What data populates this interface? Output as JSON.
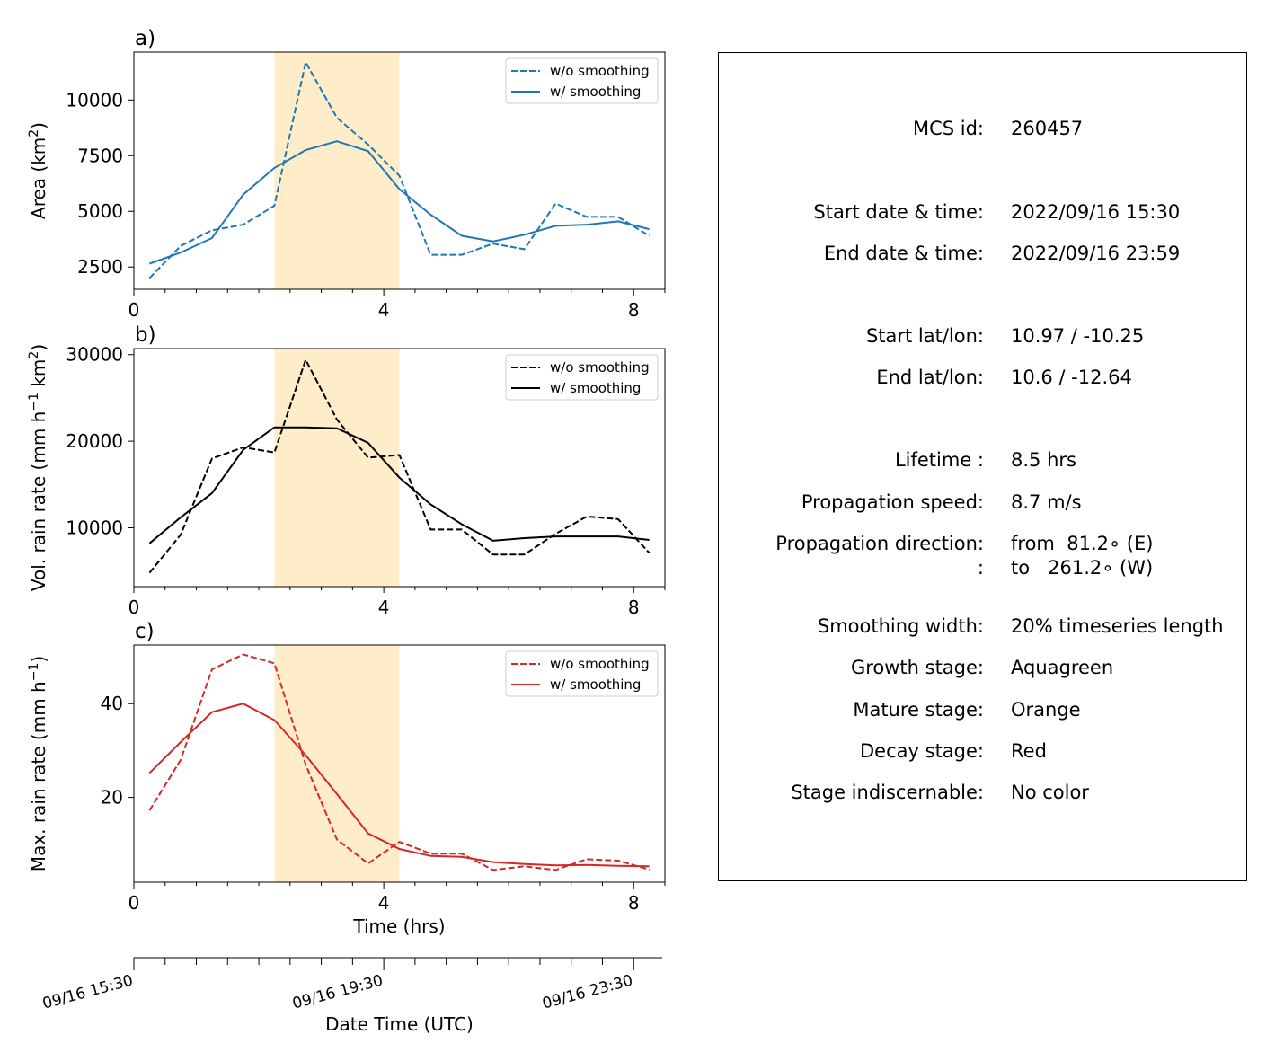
{
  "chart_data": [
    {
      "type": "line",
      "panel_label": "a)",
      "ylabel": "Area  (km²)",
      "x": [
        0.25,
        0.75,
        1.25,
        1.75,
        2.25,
        2.75,
        3.25,
        3.75,
        4.25,
        4.75,
        5.25,
        5.75,
        6.25,
        6.75,
        7.25,
        7.75,
        8.25
      ],
      "series": [
        {
          "name": "w/o smoothing",
          "style": "dashed",
          "color": "#1f77b4",
          "values": [
            2000,
            3450,
            4150,
            4400,
            5250,
            11700,
            9200,
            8000,
            6600,
            3050,
            3050,
            3550,
            3300,
            5350,
            4750,
            4750,
            3900
          ]
        },
        {
          "name": "w/ smoothing",
          "style": "solid",
          "color": "#1f77b4",
          "values": [
            2650,
            3150,
            3800,
            5750,
            6950,
            7750,
            8150,
            7700,
            6000,
            4850,
            3900,
            3650,
            3950,
            4350,
            4400,
            4550,
            4200
          ]
        }
      ],
      "xlim": [
        0,
        8.5
      ],
      "ylim": [
        1500,
        12150
      ],
      "xticks": [
        "0",
        "4",
        "8"
      ],
      "yticks": [
        {
          "v": 2500,
          "label": "2500"
        },
        {
          "v": 5000,
          "label": "5000"
        },
        {
          "v": 7500,
          "label": "7500"
        },
        {
          "v": 10000,
          "label": "10000"
        }
      ],
      "shaded_span": [
        2.25,
        4.25
      ],
      "shade_color": "#ffecc9",
      "legend": "top-right"
    },
    {
      "type": "line",
      "panel_label": "b)",
      "ylabel": "Vol. rain rate (mm h⁻¹ km²)",
      "x": [
        0.25,
        0.75,
        1.25,
        1.75,
        2.25,
        2.75,
        3.25,
        3.75,
        4.25,
        4.75,
        5.25,
        5.75,
        6.25,
        6.75,
        7.25,
        7.75,
        8.25
      ],
      "series": [
        {
          "name": "w/o smoothing",
          "style": "dashed",
          "color": "#000000",
          "values": [
            4800,
            9200,
            18000,
            19300,
            18700,
            29400,
            22500,
            18100,
            18400,
            9800,
            9800,
            6900,
            6900,
            9300,
            11300,
            11000,
            7100
          ]
        },
        {
          "name": "w/ smoothing",
          "style": "solid",
          "color": "#000000",
          "values": [
            8200,
            11200,
            14000,
            19000,
            21600,
            21600,
            21500,
            19800,
            15800,
            12700,
            10400,
            8500,
            8800,
            9000,
            9000,
            9000,
            8600
          ]
        }
      ],
      "xlim": [
        0,
        8.5
      ],
      "ylim": [
        3200,
        30700
      ],
      "xticks": [
        "0",
        "4",
        "8"
      ],
      "yticks": [
        {
          "v": 10000,
          "label": "10000"
        },
        {
          "v": 20000,
          "label": "20000"
        },
        {
          "v": 30000,
          "label": "30000"
        }
      ],
      "shaded_span": [
        2.25,
        4.25
      ],
      "shade_color": "#ffecc9",
      "legend": "top-right"
    },
    {
      "type": "line",
      "panel_label": "c)",
      "ylabel": "Max. rain rate  (mm h⁻¹)",
      "xlabel": "Time (hrs)",
      "x": [
        0.25,
        0.75,
        1.25,
        1.75,
        2.25,
        2.75,
        3.25,
        3.75,
        4.25,
        4.75,
        5.25,
        5.75,
        6.25,
        6.75,
        7.25,
        7.75,
        8.25
      ],
      "series": [
        {
          "name": "w/o smoothing",
          "style": "dashed",
          "color": "#d62728",
          "values": [
            17.2,
            28.0,
            47.3,
            50.5,
            48.6,
            27.0,
            11.0,
            5.9,
            10.5,
            8.0,
            8.0,
            4.5,
            5.3,
            4.5,
            6.8,
            6.5,
            4.6
          ]
        },
        {
          "name": "w/ smoothing",
          "style": "solid",
          "color": "#d62728",
          "values": [
            25.2,
            31.8,
            38.2,
            40.0,
            36.5,
            29.0,
            20.7,
            12.3,
            9.0,
            7.5,
            7.3,
            6.2,
            5.8,
            5.5,
            5.6,
            5.4,
            5.3
          ]
        }
      ],
      "xlim": [
        0,
        8.5
      ],
      "ylim": [
        1.9,
        52.5
      ],
      "xticks": [
        "0",
        "4",
        "8"
      ],
      "yticks": [
        {
          "v": 20,
          "label": "20"
        },
        {
          "v": 40,
          "label": "40"
        }
      ],
      "shaded_span": [
        2.25,
        4.25
      ],
      "shade_color": "#ffecc9",
      "legend": "top-right"
    }
  ],
  "secondary_axis": {
    "xlabel": "Date Time (UTC)",
    "ticks": [
      {
        "hrs": 0,
        "label": "09/16 15:30"
      },
      {
        "hrs": 4,
        "label": "09/16 19:30"
      },
      {
        "hrs": 8,
        "label": "09/16 23:30"
      }
    ]
  },
  "info": {
    "rows": [
      {
        "label": "MCS id:",
        "value": "260457"
      },
      {
        "label": "Start date & time:",
        "value": "2022/09/16 15:30"
      },
      {
        "label": "End date & time:",
        "value": "2022/09/16 23:59"
      },
      {
        "label": "Start lat/lon:",
        "value": "10.97 / -10.25"
      },
      {
        "label": "End lat/lon:",
        "value": "10.6 / -12.64"
      },
      {
        "label": "Lifetime :",
        "value": "8.5 hrs"
      },
      {
        "label": "Propagation speed:",
        "value": "8.7 m/s"
      },
      {
        "label": "Propagation direction:",
        "value": "from  81.2∘ (E)"
      },
      {
        "label": ":",
        "value": "to   261.2∘ (W)"
      },
      {
        "label": "Smoothing width:",
        "value": "20% timeseries length"
      },
      {
        "label": "Growth stage:",
        "value": "Aquagreen"
      },
      {
        "label": "Mature stage:",
        "value": "Orange"
      },
      {
        "label": "Decay stage:",
        "value": "Red"
      },
      {
        "label": "Stage indiscernable:",
        "value": "No color"
      }
    ]
  }
}
